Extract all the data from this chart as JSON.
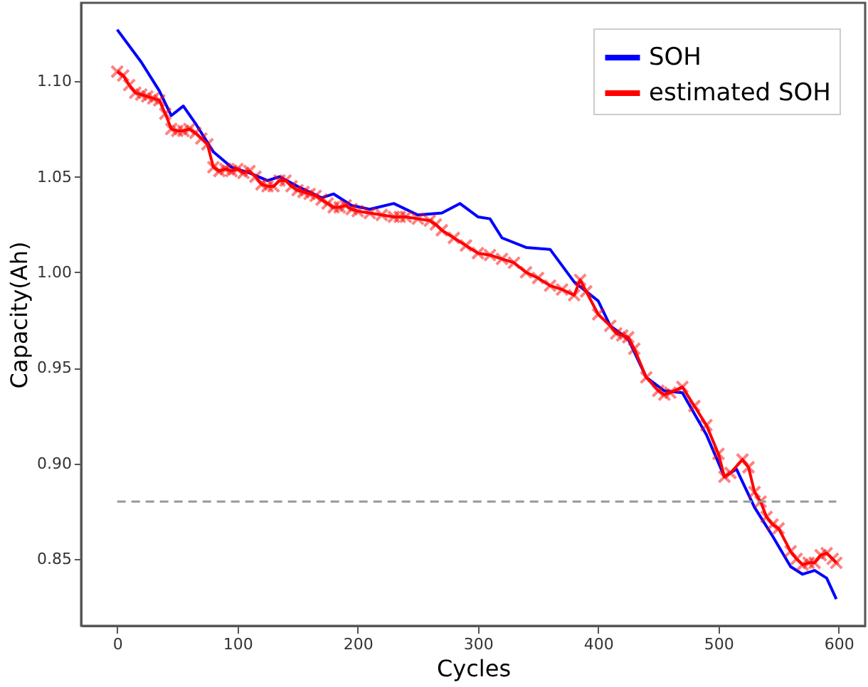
{
  "chart_data": {
    "type": "line",
    "xlabel": "Cycles",
    "ylabel": "Capacity(Ah)",
    "xlim": [
      -30,
      622
    ],
    "ylim": [
      0.815,
      1.141
    ],
    "xticks": [
      0,
      100,
      200,
      300,
      400,
      500,
      600
    ],
    "yticks": [
      0.85,
      {
        "value": 0.9,
        "label": "0.90"
      },
      0.95,
      {
        "value": 1.0,
        "label": "1.00"
      },
      1.05,
      {
        "value": 1.1,
        "label": "1.10"
      }
    ],
    "grid": false,
    "legend": "top right",
    "line_style": "solid",
    "ref_lines": [
      {
        "axis": "y",
        "value": 0.88,
        "color": "#999999",
        "line_style": "dashed"
      }
    ],
    "series": [
      {
        "name": "SOH",
        "color": "#0000ff",
        "marker": "none",
        "x": [
          0,
          20,
          35,
          45,
          55,
          65,
          80,
          95,
          110,
          125,
          135,
          150,
          170,
          180,
          195,
          210,
          230,
          250,
          270,
          285,
          300,
          310,
          320,
          340,
          360,
          380,
          400,
          410,
          425,
          440,
          455,
          470,
          490,
          505,
          515,
          530,
          545,
          560,
          570,
          580,
          590,
          598
        ],
        "values": [
          1.127,
          1.11,
          1.095,
          1.082,
          1.087,
          1.078,
          1.063,
          1.055,
          1.052,
          1.048,
          1.05,
          1.045,
          1.039,
          1.041,
          1.035,
          1.033,
          1.036,
          1.03,
          1.031,
          1.036,
          1.029,
          1.028,
          1.018,
          1.013,
          1.012,
          0.995,
          0.985,
          0.972,
          0.965,
          0.945,
          0.938,
          0.937,
          0.915,
          0.893,
          0.897,
          0.877,
          0.862,
          0.846,
          0.842,
          0.844,
          0.84,
          0.829
        ]
      },
      {
        "name": "estimated SOH",
        "color": "#ff0000",
        "marker": "cross",
        "x": [
          0,
          5,
          10,
          15,
          20,
          25,
          30,
          35,
          40,
          45,
          50,
          55,
          60,
          65,
          70,
          75,
          80,
          85,
          90,
          95,
          100,
          105,
          110,
          115,
          120,
          125,
          130,
          135,
          140,
          145,
          150,
          155,
          160,
          165,
          170,
          175,
          180,
          185,
          190,
          195,
          200,
          210,
          220,
          230,
          235,
          240,
          250,
          260,
          265,
          270,
          280,
          290,
          300,
          310,
          320,
          330,
          340,
          350,
          360,
          370,
          380,
          385,
          390,
          400,
          410,
          415,
          420,
          425,
          430,
          440,
          450,
          455,
          460,
          470,
          480,
          490,
          500,
          505,
          510,
          520,
          525,
          530,
          535,
          540,
          545,
          550,
          560,
          565,
          570,
          575,
          580,
          585,
          590,
          595,
          598
        ],
        "values": [
          1.105,
          1.103,
          1.098,
          1.094,
          1.093,
          1.092,
          1.091,
          1.09,
          1.083,
          1.075,
          1.074,
          1.074,
          1.075,
          1.073,
          1.07,
          1.067,
          1.055,
          1.053,
          1.054,
          1.053,
          1.054,
          1.052,
          1.053,
          1.05,
          1.046,
          1.045,
          1.045,
          1.048,
          1.048,
          1.045,
          1.043,
          1.042,
          1.041,
          1.04,
          1.038,
          1.036,
          1.034,
          1.034,
          1.035,
          1.033,
          1.032,
          1.031,
          1.03,
          1.029,
          1.029,
          1.029,
          1.028,
          1.027,
          1.025,
          1.022,
          1.018,
          1.014,
          1.01,
          1.009,
          1.007,
          1.005,
          1.0,
          0.997,
          0.993,
          0.991,
          0.988,
          0.996,
          0.99,
          0.978,
          0.972,
          0.968,
          0.967,
          0.966,
          0.96,
          0.945,
          0.938,
          0.936,
          0.937,
          0.94,
          0.93,
          0.92,
          0.905,
          0.893,
          0.895,
          0.902,
          0.898,
          0.885,
          0.88,
          0.872,
          0.868,
          0.866,
          0.854,
          0.85,
          0.847,
          0.848,
          0.848,
          0.852,
          0.853,
          0.85,
          0.848
        ]
      }
    ]
  }
}
